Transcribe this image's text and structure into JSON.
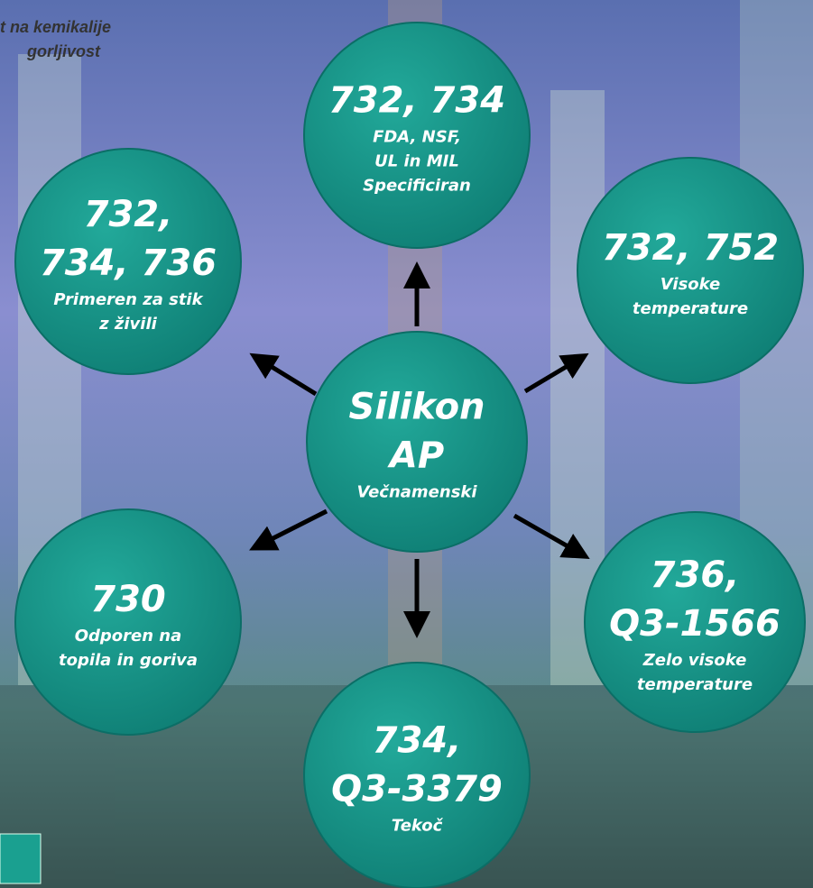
{
  "header": {
    "lines": [
      "t na kemikalije",
      "gorljivost"
    ]
  },
  "nodes": [
    {
      "title": [
        "Silikon",
        "AP"
      ],
      "subtitle": [
        "Večnamenski"
      ]
    },
    {
      "title": [
        "732, 734"
      ],
      "subtitle": [
        "FDA, NSF,",
        "UL in  MIL",
        "Specificiran"
      ]
    },
    {
      "title": [
        "732,",
        "734, 736"
      ],
      "subtitle": [
        "Primeren za stik",
        "z živili"
      ]
    },
    {
      "title": [
        "732, 752"
      ],
      "subtitle": [
        "Visoke",
        "temperature"
      ]
    },
    {
      "title": [
        "730"
      ],
      "subtitle": [
        "Odporen na",
        "topila in goriva"
      ]
    },
    {
      "title": [
        "736,",
        "Q3-1566"
      ],
      "subtitle": [
        "Zelo visoke",
        "temperature"
      ]
    },
    {
      "title": [
        "734,",
        "Q3-3379"
      ],
      "subtitle": [
        "Tekoč"
      ]
    }
  ]
}
